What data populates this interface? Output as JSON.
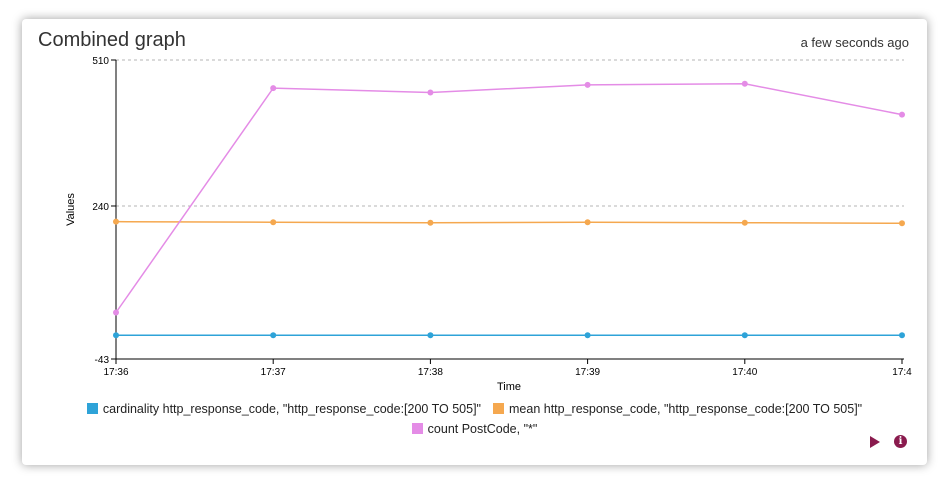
{
  "card": {
    "title": "Combined graph",
    "timestamp": "a few seconds ago"
  },
  "controls": {
    "play_icon": "play-icon",
    "info_icon": "info-icon",
    "info_glyph": "i",
    "accent_color": "#8a1b4e"
  },
  "chart_data": {
    "type": "line",
    "xlabel": "Time",
    "ylabel": "Values",
    "categories": [
      "17:36",
      "17:37",
      "17:38",
      "17:39",
      "17:40",
      "17:4"
    ],
    "ylim": [
      -43,
      510
    ],
    "yticks": [
      "510",
      "240",
      "-43"
    ],
    "grid": "horizontal dashed at 510 and 240",
    "legend": "bottom-center",
    "series": [
      {
        "name": "cardinality http_response_code, \"http_response_code:[200 TO 505]\"",
        "color": "#2ea3d8",
        "values": [
          1,
          1,
          1,
          1,
          1,
          1
        ]
      },
      {
        "name": "mean http_response_code, \"http_response_code:[200 TO 505]\"",
        "color": "#f5a84f",
        "values": [
          211,
          210,
          209,
          210,
          209,
          208
        ]
      },
      {
        "name": "count PostCode, \"*\"",
        "color": "#e48ce6",
        "values": [
          43,
          458,
          450,
          464,
          466,
          409
        ]
      }
    ]
  }
}
